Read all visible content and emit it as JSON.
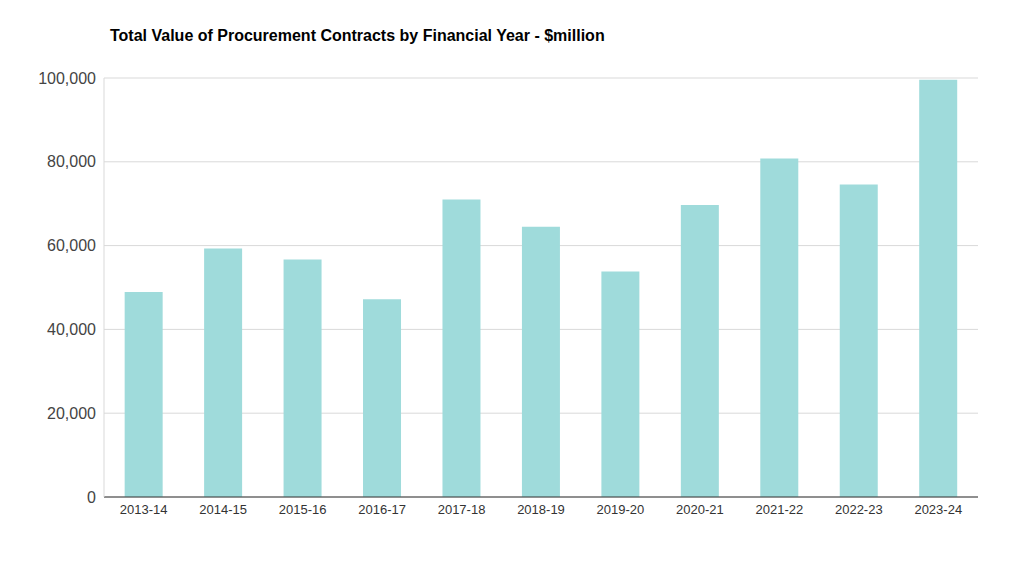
{
  "chart_data": {
    "type": "bar",
    "title": "Total Value of Procurement Contracts by Financial Year - $million",
    "categories": [
      "2013-14",
      "2014-15",
      "2015-16",
      "2016-17",
      "2017-18",
      "2018-19",
      "2019-20",
      "2020-21",
      "2021-22",
      "2022-23",
      "2023-24"
    ],
    "values": [
      48900,
      59300,
      56700,
      47200,
      71000,
      64500,
      53800,
      69700,
      80800,
      74600,
      99600
    ],
    "color": "#9fdbdb",
    "ylim": [
      0,
      100000
    ],
    "yticks": [
      0,
      {
        "value": 20000,
        "label": "20,000"
      },
      {
        "value": 40000,
        "label": "40,000"
      },
      {
        "value": 60000,
        "label": "60,000"
      },
      {
        "value": 80000,
        "label": "80,000"
      },
      {
        "value": 100000,
        "label": "100,000"
      }
    ],
    "grid": true
  }
}
